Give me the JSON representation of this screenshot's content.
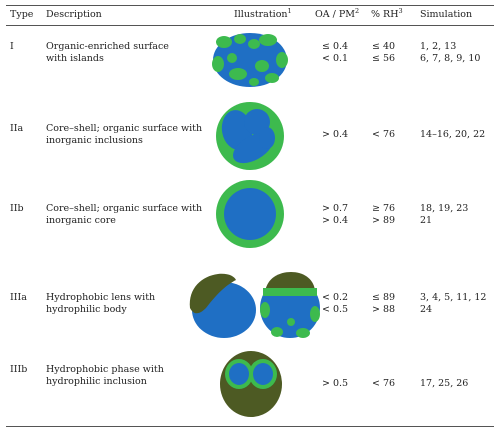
{
  "headers": {
    "type": "Type",
    "description": "Description",
    "illustration": "Illustration",
    "illustration_note": "1",
    "oa_pm": "OA / PM",
    "oa_pm_note": "2",
    "rh": "% RH",
    "rh_note": "3",
    "simulation": "Simulation"
  },
  "rows": [
    {
      "type": "I",
      "description": [
        "Organic-enriched surface",
        "with islands"
      ],
      "oa_pm": [
        "≤ 0.4",
        "< 0.1"
      ],
      "rh": [
        "≤ 40",
        "≤ 56"
      ],
      "simulation": [
        "1, 2, 13",
        "6, 7, 8, 9, 10"
      ]
    },
    {
      "type": "IIa",
      "description": [
        "Core–shell; organic surface with",
        "inorganic inclusions"
      ],
      "oa_pm": [
        "> 0.4"
      ],
      "rh": [
        "< 76"
      ],
      "simulation": [
        "14–16, 20, 22"
      ]
    },
    {
      "type": "IIb",
      "description": [
        "Core–shell; organic surface with",
        "inorganic core"
      ],
      "oa_pm": [
        "> 0.7",
        "> 0.4"
      ],
      "rh": [
        "≥ 76",
        "> 89"
      ],
      "simulation": [
        "18, 19, 23",
        "21"
      ]
    },
    {
      "type": "IIIa",
      "description": [
        "Hydrophobic lens with",
        "hydrophilic body"
      ],
      "oa_pm": [
        "< 0.2",
        "< 0.5"
      ],
      "rh": [
        "≤ 89",
        "> 88"
      ],
      "simulation": [
        "3, 4, 5, 11, 12",
        "24"
      ]
    },
    {
      "type": "IIIb",
      "description": [
        "Hydrophobic phase with",
        "hydrophilic inclusion"
      ],
      "oa_pm": [
        "> 0.5"
      ],
      "rh": [
        "< 76"
      ],
      "simulation": [
        "17, 25, 26"
      ]
    }
  ],
  "colors": {
    "inorganic": "#1f6fc4",
    "organic": "#3dba4e",
    "hydrophobic": "#4d5a23"
  }
}
